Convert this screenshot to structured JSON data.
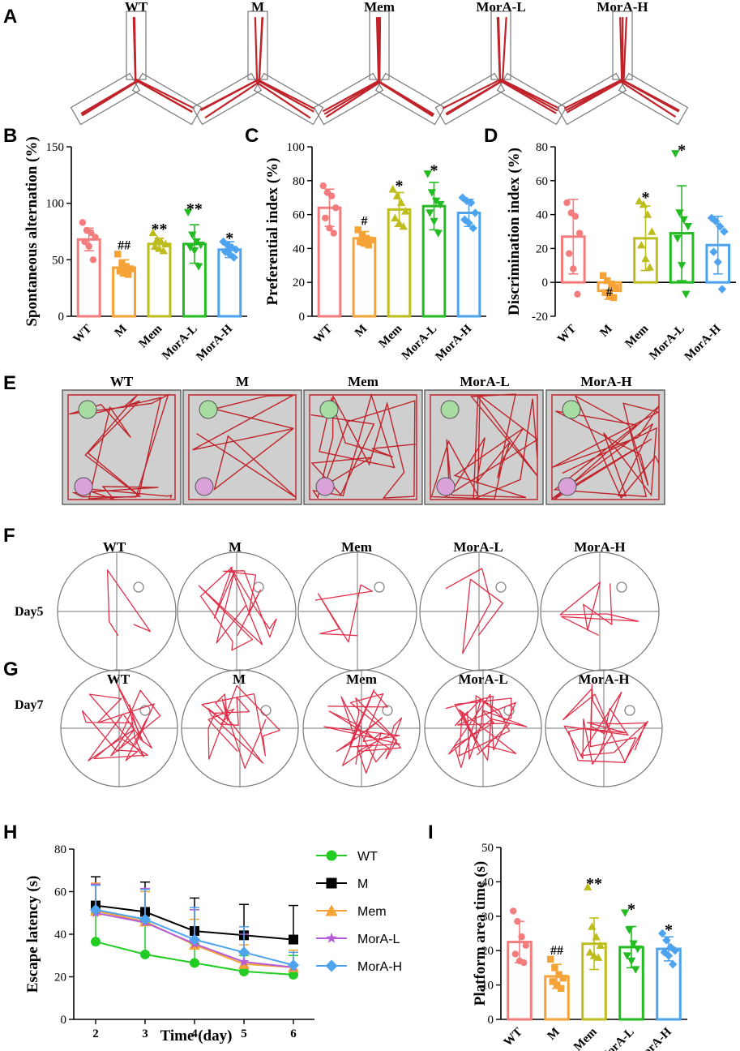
{
  "groups": [
    "WT",
    "M",
    "Mem",
    "MorA-L",
    "MorA-H"
  ],
  "group_colors": [
    "#f47c7c",
    "#f5a236",
    "#bdbd1d",
    "#22bb22",
    "#4da3ee"
  ],
  "trace_color": "#c0232a",
  "water_trace_color": "#e0304a",
  "panels": {
    "A": {
      "label": "A",
      "titles": [
        "WT",
        "M",
        "Mem",
        "MorA-L",
        "MorA-H"
      ]
    },
    "E": {
      "label": "E",
      "titles": [
        "WT",
        "M",
        "Mem",
        "MorA-L",
        "MorA-H"
      ]
    },
    "F": {
      "label": "F",
      "titles": [
        "WT",
        "M",
        "Mem",
        "MorA-L",
        "MorA-H"
      ],
      "row_label": "Day5"
    },
    "G": {
      "label": "G",
      "titles": [
        "WT",
        "M",
        "Mem",
        "MorA-L",
        "MorA-H"
      ],
      "row_label": "Day7"
    }
  },
  "chart_data": [
    {
      "panel": "B",
      "type": "bar",
      "categories": [
        "WT",
        "M",
        "Mem",
        "MorA-L",
        "MorA-H"
      ],
      "values": [
        68,
        43,
        64,
        64,
        59
      ],
      "errors": [
        10,
        7,
        5,
        17,
        7
      ],
      "points": [
        [
          83,
          76,
          74,
          70,
          66,
          62,
          50
        ],
        [
          55,
          47,
          44,
          42,
          40,
          38,
          37
        ],
        [
          74,
          68,
          66,
          64,
          62,
          60,
          58
        ],
        [
          92,
          72,
          66,
          63,
          61,
          58,
          44
        ],
        [
          66,
          63,
          61,
          59,
          57,
          55,
          52
        ]
      ],
      "significance": [
        "",
        "##",
        "**",
        "**",
        "*"
      ],
      "ylabel": "Spontaneous alternation (%)",
      "ylim": [
        0,
        150
      ],
      "yticks": [
        0,
        50,
        100,
        150
      ]
    },
    {
      "panel": "C",
      "type": "bar",
      "categories": [
        "WT",
        "M",
        "Mem",
        "MorA-L",
        "MorA-H"
      ],
      "values": [
        64,
        46,
        63,
        65,
        61
      ],
      "errors": [
        11,
        4,
        10,
        14,
        8
      ],
      "points": [
        [
          77,
          73,
          71,
          64,
          58,
          52,
          49
        ],
        [
          51,
          48,
          46,
          45,
          44,
          43,
          42
        ],
        [
          75,
          71,
          67,
          62,
          58,
          55,
          53
        ],
        [
          84,
          73,
          68,
          66,
          61,
          56,
          49
        ],
        [
          70,
          68,
          67,
          61,
          57,
          55,
          52
        ]
      ],
      "significance": [
        "",
        "#",
        "*",
        "*",
        ""
      ],
      "ylabel": "Preferential index (%)",
      "ylim": [
        0,
        100
      ],
      "yticks": [
        0,
        20,
        40,
        60,
        80,
        100
      ]
    },
    {
      "panel": "D",
      "type": "bar",
      "categories": [
        "WT",
        "M",
        "Mem",
        "MorA-L",
        "MorA-H"
      ],
      "values": [
        27,
        -5,
        26,
        29,
        22
      ],
      "errors": [
        22,
        5,
        19,
        28,
        17
      ],
      "points": [
        [
          47,
          41,
          39,
          29,
          17,
          8,
          -7
        ],
        [
          4,
          1,
          -1,
          -3,
          -6,
          -8,
          -9
        ],
        [
          48,
          46,
          40,
          30,
          22,
          14,
          9
        ],
        [
          76,
          41,
          37,
          33,
          26,
          10,
          -7
        ],
        [
          38,
          36,
          33,
          30,
          18,
          12,
          -4
        ]
      ],
      "significance": [
        "",
        "#",
        "*",
        "*",
        ""
      ],
      "ylabel": "Discrimination index (%)",
      "ylim": [
        -20,
        80
      ],
      "yticks": [
        -20,
        0,
        20,
        40,
        60,
        80
      ]
    },
    {
      "panel": "H",
      "type": "line",
      "x": [
        2,
        3,
        4,
        5,
        6
      ],
      "series": [
        {
          "name": "WT",
          "values": [
            36.5,
            30.5,
            26.5,
            22.5,
            21.0
          ],
          "errors": [
            13.5,
            15,
            9,
            7.5,
            9
          ]
        },
        {
          "name": "M",
          "values": [
            53.5,
            50.5,
            41.5,
            39.5,
            37.5
          ],
          "errors": [
            13.5,
            14,
            15.5,
            14.5,
            16
          ]
        },
        {
          "name": "Mem",
          "values": [
            51.0,
            46.0,
            35.0,
            26.0,
            24.5
          ],
          "errors": [
            13,
            14,
            12,
            9,
            8
          ]
        },
        {
          "name": "MorA-L",
          "values": [
            50.0,
            45.5,
            35.5,
            27.0,
            24.5
          ],
          "errors": [
            13.5,
            16,
            16,
            13,
            7
          ]
        },
        {
          "name": "MorA-H",
          "values": [
            51.5,
            47.0,
            37.5,
            31.5,
            25.5
          ],
          "errors": [
            11.5,
            14,
            15,
            12,
            6
          ]
        }
      ],
      "xlabel": "Time (day)",
      "ylabel": "Escape latency (s)",
      "xticks": [
        2,
        3,
        4,
        5,
        6
      ],
      "ylim": [
        0,
        80
      ],
      "yticks": [
        0,
        20,
        40,
        60,
        80
      ],
      "legend": "right"
    },
    {
      "panel": "I",
      "type": "bar",
      "categories": [
        "WT",
        "M",
        "Mem",
        "MorA-L",
        "MorA-H"
      ],
      "values": [
        22.5,
        12.5,
        22,
        21,
        20.5
      ],
      "errors": [
        6,
        3.5,
        7.5,
        6,
        3.5
      ],
      "points": [
        [
          31.5,
          28.5,
          24,
          21.5,
          19,
          17,
          16.5
        ],
        [
          17.5,
          15,
          13,
          12,
          11,
          10,
          9
        ],
        [
          38.5,
          27,
          24,
          21.5,
          19.5,
          18.5,
          18
        ],
        [
          31,
          26,
          22,
          20.5,
          18.5,
          17,
          14.5
        ],
        [
          25,
          23,
          21,
          20,
          19.5,
          18.5,
          16
        ]
      ],
      "significance": [
        "",
        "##",
        "**",
        "*",
        "*"
      ],
      "ylabel": "Platform area time (s)",
      "ylim": [
        0,
        50
      ],
      "yticks": [
        0,
        10,
        20,
        30,
        40,
        50
      ]
    }
  ]
}
